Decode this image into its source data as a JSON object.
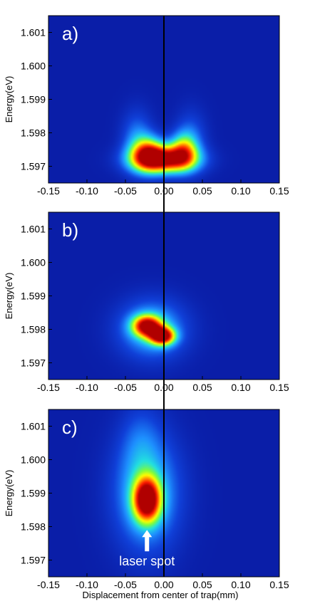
{
  "colors": {
    "background": "#0a1ea8",
    "cmap": [
      "#0a1ea8",
      "#1040d8",
      "#1e90ff",
      "#22e0e0",
      "#7cfc40",
      "#ffff00",
      "#ff8800",
      "#ff1a00",
      "#b00000"
    ]
  },
  "chart_data": [
    {
      "type": "heatmap",
      "panel_label": "a)",
      "xlabel": "",
      "ylabel": "Energy(eV)",
      "xlim": [
        -0.15,
        0.15
      ],
      "ylim": [
        1.5965,
        1.6015
      ],
      "x_ticks": [
        "-0.15",
        "-0.10",
        "-0.05",
        "0.00",
        "0.05",
        "0.10",
        "0.15"
      ],
      "y_ticks": [
        "1.597",
        "1.598",
        "1.599",
        "1.600",
        "1.601"
      ],
      "blobs": [
        {
          "x": 0.0,
          "y": 1.5972,
          "sx": 0.028,
          "sy": 0.00028,
          "amp": 1.0,
          "tilt": 0
        },
        {
          "x": -0.02,
          "y": 1.5974,
          "sx": 0.014,
          "sy": 0.00035,
          "amp": 0.55,
          "tilt": 0
        },
        {
          "x": 0.025,
          "y": 1.5975,
          "sx": 0.012,
          "sy": 0.00035,
          "amp": 0.45,
          "tilt": 0
        },
        {
          "x": -0.035,
          "y": 1.5978,
          "sx": 0.014,
          "sy": 0.0006,
          "amp": 0.22,
          "tilt": 0
        },
        {
          "x": 0.035,
          "y": 1.5978,
          "sx": 0.014,
          "sy": 0.0006,
          "amp": 0.18,
          "tilt": 0
        }
      ]
    },
    {
      "type": "heatmap",
      "panel_label": "b)",
      "xlabel": "",
      "ylabel": "Energy(eV)",
      "xlim": [
        -0.15,
        0.15
      ],
      "ylim": [
        1.5965,
        1.6015
      ],
      "x_ticks": [
        "-0.15",
        "-0.10",
        "-0.05",
        "0.00",
        "0.05",
        "0.10",
        "0.15"
      ],
      "y_ticks": [
        "1.597",
        "1.598",
        "1.599",
        "1.600",
        "1.601"
      ],
      "blobs": [
        {
          "x": -0.022,
          "y": 1.5981,
          "sx": 0.013,
          "sy": 0.00022,
          "amp": 0.85,
          "tilt": 0
        },
        {
          "x": -0.002,
          "y": 1.5978,
          "sx": 0.011,
          "sy": 0.00018,
          "amp": 0.95,
          "tilt": 0
        },
        {
          "x": -0.015,
          "y": 1.598,
          "sx": 0.03,
          "sy": 0.0006,
          "amp": 0.35,
          "tilt": 0
        }
      ]
    },
    {
      "type": "heatmap",
      "panel_label": "c)",
      "xlabel": "Displacement from center of trap(mm)",
      "ylabel": "Energy(eV)",
      "xlim": [
        -0.15,
        0.15
      ],
      "ylim": [
        1.5965,
        1.6015
      ],
      "x_ticks": [
        "-0.15",
        "-0.10",
        "-0.05",
        "0.00",
        "0.05",
        "0.10",
        "0.15"
      ],
      "y_ticks": [
        "1.597",
        "1.598",
        "1.599",
        "1.600",
        "1.601"
      ],
      "blobs": [
        {
          "x": -0.022,
          "y": 1.5988,
          "sx": 0.012,
          "sy": 0.00045,
          "amp": 1.0,
          "tilt": 0
        },
        {
          "x": -0.022,
          "y": 1.599,
          "sx": 0.03,
          "sy": 0.0012,
          "amp": 0.35,
          "tilt": 0
        },
        {
          "x": -0.03,
          "y": 1.6005,
          "sx": 0.018,
          "sy": 0.0008,
          "amp": 0.12,
          "tilt": 0
        }
      ],
      "annotation": {
        "text": "laser spot",
        "x": -0.022,
        "y": 1.5972,
        "arrow_to_y": 1.5979
      }
    }
  ],
  "vertical_line_x": 0.0
}
